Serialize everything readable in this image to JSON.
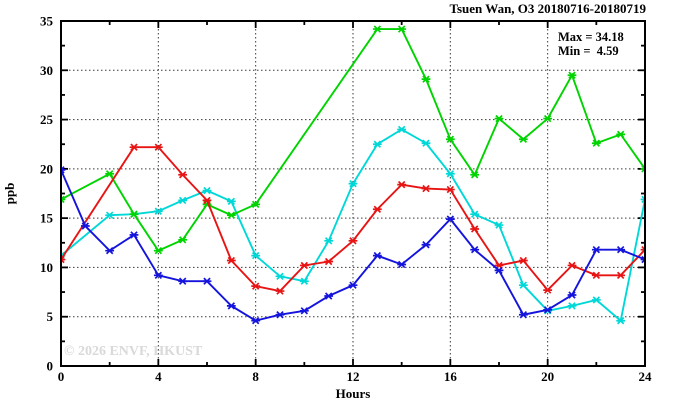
{
  "title": "Tsuen Wan, O3 20180716-20180719",
  "annotation": {
    "max_label": "Max = 34.18",
    "min_label": "Min =  4.59"
  },
  "watermark": "© 2026 ENVF, HKUST",
  "chart_data": {
    "type": "line",
    "title": "Tsuen Wan, O3 20180716-20180719",
    "xlabel": "Hours",
    "ylabel": "ppb",
    "xlim": [
      0,
      24
    ],
    "ylim": [
      0,
      35
    ],
    "x_major_ticks": [
      0,
      4,
      8,
      12,
      16,
      20,
      24
    ],
    "x_minor_step": 2,
    "y_major_ticks": [
      0,
      5,
      10,
      15,
      20,
      25,
      30,
      35
    ],
    "y_minor_step": 2.5,
    "grid": "dotted lines at major ticks",
    "legend_position": "none",
    "stat_max": 34.18,
    "stat_min": 4.59,
    "x": [
      0,
      1,
      2,
      3,
      4,
      5,
      6,
      7,
      8,
      9,
      10,
      11,
      12,
      13,
      14,
      15,
      16,
      17,
      18,
      19,
      20,
      21,
      22,
      23,
      24
    ],
    "series": [
      {
        "name": "cyan-series",
        "color": "#00d8d8",
        "values": [
          11.2,
          null,
          15.3,
          15.4,
          15.7,
          16.8,
          17.8,
          16.7,
          11.2,
          9.1,
          8.6,
          12.7,
          18.5,
          22.5,
          24.0,
          22.6,
          19.5,
          15.4,
          14.3,
          8.2,
          5.6,
          6.1,
          6.7,
          4.59,
          16.9
        ]
      },
      {
        "name": "green-series",
        "color": "#00d400",
        "values": [
          16.9,
          null,
          19.5,
          15.4,
          11.7,
          12.8,
          16.4,
          15.3,
          16.4,
          null,
          null,
          null,
          null,
          34.18,
          34.18,
          29.1,
          23.0,
          19.4,
          25.1,
          23.0,
          25.1,
          29.5,
          22.6,
          23.5,
          20.0
        ]
      },
      {
        "name": "red-series",
        "color": "#e81414",
        "values": [
          10.8,
          null,
          null,
          22.2,
          22.2,
          19.4,
          16.8,
          10.7,
          8.1,
          7.6,
          10.2,
          10.6,
          12.7,
          15.9,
          18.4,
          18.0,
          17.9,
          13.9,
          10.2,
          10.7,
          7.7,
          10.2,
          9.2,
          9.2,
          11.8
        ]
      },
      {
        "name": "blue-series",
        "color": "#1414dd",
        "values": [
          19.9,
          14.2,
          11.7,
          13.3,
          9.2,
          8.6,
          8.6,
          6.1,
          4.6,
          5.2,
          5.6,
          7.1,
          8.2,
          11.2,
          10.3,
          12.3,
          14.9,
          11.8,
          9.7,
          5.2,
          5.7,
          7.2,
          11.8,
          11.8,
          10.8
        ]
      }
    ]
  }
}
